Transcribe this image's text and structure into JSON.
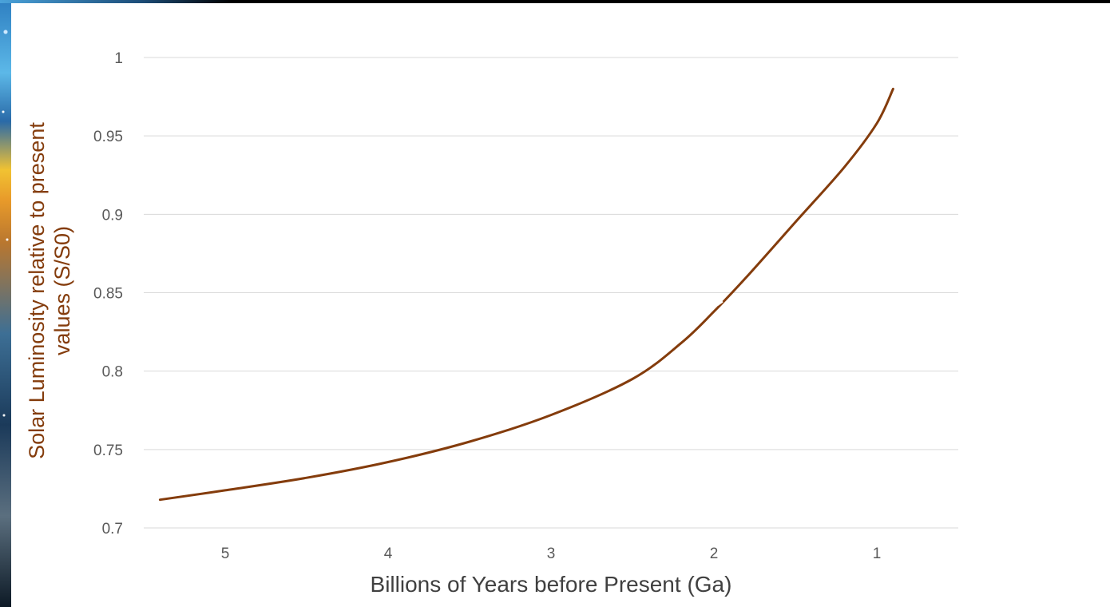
{
  "chart_data": {
    "type": "line",
    "xlabel": "Billions of Years before Present (Ga)",
    "ylabel_lines": [
      "Solar Luminosity relative to present",
      "values (S/S0)"
    ],
    "x_axis_reversed": true,
    "xlim": [
      5.5,
      0.5
    ],
    "ylim": [
      0.7,
      1.0
    ],
    "x_ticks": [
      5,
      4,
      3,
      2,
      1
    ],
    "x_tick_labels": [
      "5",
      "4",
      "3",
      "2",
      "1"
    ],
    "y_ticks": [
      0.7,
      0.75,
      0.8,
      0.85,
      0.9,
      0.95,
      1.0
    ],
    "y_tick_labels": [
      "0.7",
      "0.75",
      "0.8",
      "0.85",
      "0.9",
      "0.95",
      "1"
    ],
    "grid": true,
    "line_color": "#843c0c",
    "series": [
      {
        "x": [
          5.4,
          5.0,
          4.5,
          4.0,
          3.5,
          3.0,
          2.5,
          2.2,
          2.0,
          1.8,
          1.5,
          1.2,
          1.0,
          0.9
        ],
        "y": [
          0.718,
          0.724,
          0.732,
          0.742,
          0.755,
          0.772,
          0.795,
          0.818,
          0.838,
          0.86,
          0.895,
          0.93,
          0.958,
          0.98
        ]
      }
    ]
  }
}
